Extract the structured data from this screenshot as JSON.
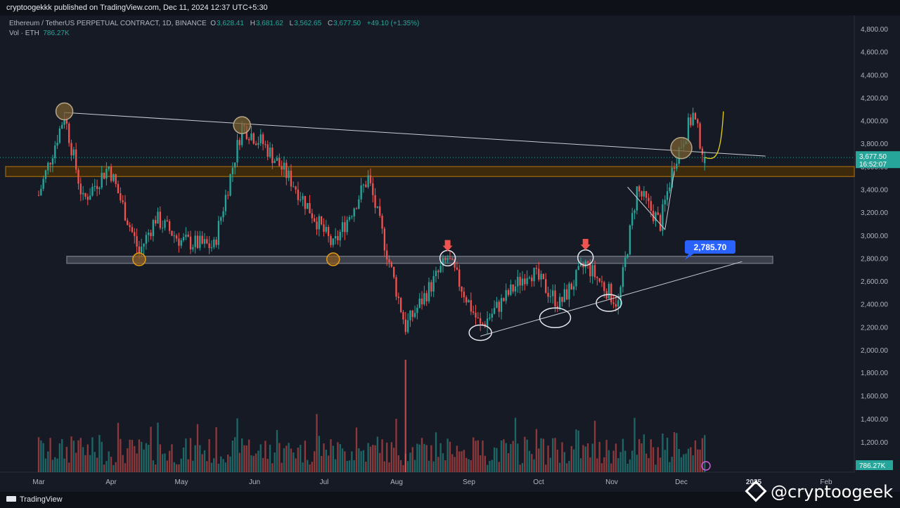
{
  "header": {
    "published": "cryptoogekkk published on TradingView.com, Dec 11, 2024 12:37 UTC+5:30"
  },
  "legend": {
    "symbol": "Ethereum / TetherUS PERPETUAL CONTRACT, 1D, BINANCE",
    "o_label": "O",
    "o_value": "3,628.41",
    "h_label": "H",
    "h_value": "3,681.62",
    "l_label": "L",
    "l_value": "3,562.65",
    "c_label": "C",
    "c_value": "3,677.50",
    "change": "+49.10 (+1.35%)",
    "vol_label": "Vol · ETH",
    "vol_value": "786.27K"
  },
  "footer": {
    "brand": "TradingView",
    "watermark": "@cryptoogeek"
  },
  "colors": {
    "background": "#161a25",
    "up": "#26a69a",
    "down": "#ef5350",
    "support_zone": "#6b6f7a",
    "resistance_zone": "#8a5a10",
    "price_label": "#26a69a",
    "callout": "#2962ff"
  },
  "chart_data": {
    "type": "candlestick",
    "x": [
      "Mar",
      "Apr",
      "May",
      "Jun",
      "Jul",
      "Aug",
      "Sep",
      "Oct",
      "Nov",
      "Dec",
      "2025",
      "Feb"
    ],
    "ylim": [
      2000,
      4900
    ],
    "y_ticks": [
      2000,
      2200,
      2400,
      2600,
      2800,
      3000,
      3200,
      3400,
      3600,
      3800,
      4000,
      4200,
      4400,
      4600,
      4800
    ],
    "y_tick_labels": [
      "2,000.00",
      "2,200.00",
      "2,400.00",
      "2,600.00",
      "2,800.00",
      "3,000.00",
      "3,200.00",
      "3,400.00",
      "3,600.00",
      "3,800.00",
      "4,000.00",
      "4,200.00",
      "4,400.00",
      "4,600.00",
      "4,800.00"
    ],
    "volume_tick_labels": [
      "1,200.00",
      "1,400.00",
      "1,600.00",
      "1,800.00"
    ],
    "last_price": 3677.5,
    "last_price_label": "3,677.50",
    "countdown": "16:52:07",
    "last_volume_label": "786.27K",
    "support_level": 2785.7,
    "support_label": "2,785.70",
    "resistance_zone": [
      3530,
      3580
    ],
    "price_path": [
      {
        "date": "2024-03-01",
        "price": 3350
      },
      {
        "date": "2024-03-12",
        "price": 4050
      },
      {
        "date": "2024-03-20",
        "price": 3300
      },
      {
        "date": "2024-03-31",
        "price": 3600
      },
      {
        "date": "2024-04-13",
        "price": 2850
      },
      {
        "date": "2024-04-20",
        "price": 3150
      },
      {
        "date": "2024-05-01",
        "price": 2950
      },
      {
        "date": "2024-05-15",
        "price": 2900
      },
      {
        "date": "2024-05-27",
        "price": 3950
      },
      {
        "date": "2024-06-05",
        "price": 3800
      },
      {
        "date": "2024-06-18",
        "price": 3450
      },
      {
        "date": "2024-07-05",
        "price": 2900
      },
      {
        "date": "2024-07-20",
        "price": 3500
      },
      {
        "date": "2024-08-05",
        "price": 2200
      },
      {
        "date": "2024-08-23",
        "price": 2800
      },
      {
        "date": "2024-09-06",
        "price": 2200
      },
      {
        "date": "2024-09-27",
        "price": 2700
      },
      {
        "date": "2024-10-10",
        "price": 2400
      },
      {
        "date": "2024-10-21",
        "price": 2750
      },
      {
        "date": "2024-11-04",
        "price": 2400
      },
      {
        "date": "2024-11-12",
        "price": 3400
      },
      {
        "date": "2024-11-22",
        "price": 3100
      },
      {
        "date": "2024-11-28",
        "price": 3650
      },
      {
        "date": "2024-12-06",
        "price": 4050
      },
      {
        "date": "2024-12-11",
        "price": 3677.5
      }
    ],
    "trendlines": [
      {
        "name": "descending resistance",
        "from": {
          "date": "2024-03-12",
          "price": 4070
        },
        "to": {
          "date": "2025-01-06",
          "price": 3690
        }
      },
      {
        "name": "ascending support",
        "from": {
          "date": "2024-09-06",
          "price": 2120
        },
        "to": {
          "date": "2024-12-27",
          "price": 2770
        }
      }
    ]
  }
}
